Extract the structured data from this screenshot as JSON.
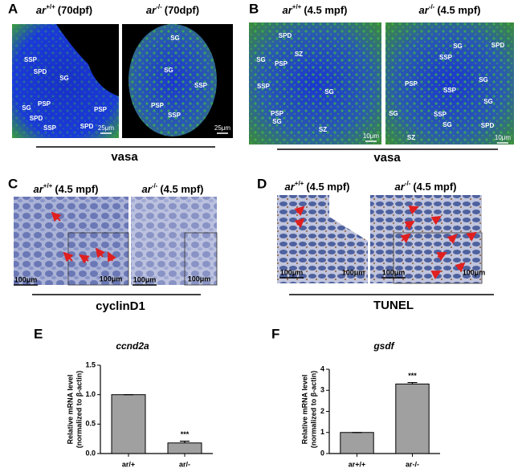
{
  "panels": [
    {
      "label": "A",
      "stain": "vasa",
      "images": [
        {
          "genotype": "ar",
          "allele": "+/+",
          "stage": "(70dpf)",
          "scale": "25μm",
          "cells": [
            "SSP",
            "SPD",
            "SG",
            "SG",
            "PSP",
            "SPD",
            "SSP",
            "SPD",
            "PSP"
          ]
        },
        {
          "genotype": "ar",
          "allele": "-/-",
          "stage": "(70dpf)",
          "scale": "25μm",
          "cells": [
            "SG",
            "SG",
            "SSP",
            "PSP",
            "SSP"
          ]
        }
      ]
    },
    {
      "label": "B",
      "stain": "vasa",
      "images": [
        {
          "genotype": "ar",
          "allele": "+/+",
          "stage": "(4.5 mpf)",
          "scale": "10μm",
          "cells": [
            "SPD",
            "SZ",
            "SG",
            "PSP",
            "SSP",
            "SG",
            "PSP",
            "SG",
            "SZ"
          ]
        },
        {
          "genotype": "ar",
          "allele": "-/-",
          "stage": "(4.5 mpf)",
          "scale": "10μm",
          "cells": [
            "SPD",
            "SG",
            "SSP",
            "PSP",
            "SSP",
            "SG",
            "SG",
            "SG",
            "SSP",
            "SG",
            "SPD",
            "SZ"
          ]
        }
      ]
    },
    {
      "label": "C",
      "stain": "cyclinD1",
      "images": [
        {
          "genotype": "ar",
          "allele": "+/+",
          "stage": "(4.5 mpf)",
          "scale": "100μm",
          "inset_scale": "100μm",
          "cells": []
        },
        {
          "genotype": "ar",
          "allele": "-/-",
          "stage": "(4.5 mpf)",
          "scale": "100μm",
          "inset_scale": "100μm",
          "cells": []
        }
      ]
    },
    {
      "label": "D",
      "stain": "TUNEL",
      "images": [
        {
          "genotype": "ar",
          "allele": "+/+",
          "stage": "(4.5 mpf)",
          "scale": "100μm",
          "inset_scale": "100μm",
          "cells": []
        },
        {
          "genotype": "ar",
          "allele": "-/-",
          "stage": "(4.5 mpf)",
          "scale": "100μm",
          "inset_scale": "100μm",
          "cells": []
        }
      ]
    }
  ],
  "chart_data": [
    {
      "type": "bar",
      "label": "E",
      "title": "ccnd2a",
      "ylabel": [
        "Relative mRNA level",
        "(normalized to β-actin)"
      ],
      "categories": [
        "ar/+",
        "ar/-"
      ],
      "values": [
        1.0,
        0.18
      ],
      "errors": [
        0,
        0.03
      ],
      "color": "#a0a0a0",
      "annotation": "***",
      "ylim": [
        0,
        1.5
      ],
      "yticks": [
        {
          "value": 0,
          "label": "0.0"
        },
        0.5,
        {
          "value": 1,
          "label": "1.0"
        },
        1.5
      ]
    },
    {
      "type": "bar",
      "label": "F",
      "title": "gsdf",
      "ylabel": [
        "Relative mRNA level",
        "(normalized to β-actin)"
      ],
      "categories": [
        "ar+/+",
        "ar-/-"
      ],
      "values": [
        1.0,
        3.3
      ],
      "errors": [
        0,
        0.07
      ],
      "color": "#a0a0a0",
      "annotation": "***",
      "ylim": [
        0,
        4
      ],
      "yticks": [
        0,
        1,
        2,
        3,
        4
      ]
    }
  ]
}
